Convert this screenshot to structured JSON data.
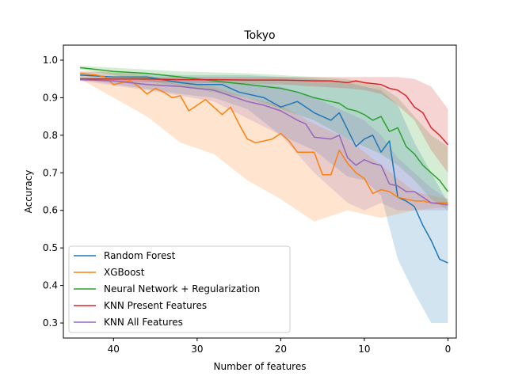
{
  "chart_data": {
    "type": "line",
    "title": "Tokyo",
    "xlabel": "Number of features",
    "ylabel": "Accuracy",
    "xlim": [
      46,
      -1
    ],
    "ylim": [
      0.26,
      1.04
    ],
    "x_inverted": true,
    "grid": false,
    "legend_position": "lower-left",
    "x_ticks": [
      40,
      30,
      20,
      10,
      0
    ],
    "y_ticks": [
      0.3,
      0.4,
      0.5,
      0.6,
      0.7,
      0.8,
      0.9,
      1.0
    ],
    "x_tick_labels": [
      "40",
      "30",
      "20",
      "10",
      "0"
    ],
    "y_tick_labels": [
      "0.3",
      "0.4",
      "0.5",
      "0.6",
      "0.7",
      "0.8",
      "0.9",
      "1.0"
    ],
    "band_style": "shaded min/max range per series",
    "series": [
      {
        "name": "Random Forest",
        "color": "#1f77b4",
        "points": [
          [
            44,
            0.96
          ],
          [
            40,
            0.955
          ],
          [
            36,
            0.955
          ],
          [
            32,
            0.94
          ],
          [
            30,
            0.935
          ],
          [
            27,
            0.935
          ],
          [
            25,
            0.915
          ],
          [
            22,
            0.9
          ],
          [
            20,
            0.875
          ],
          [
            18,
            0.89
          ],
          [
            16,
            0.86
          ],
          [
            14,
            0.84
          ],
          [
            13,
            0.86
          ],
          [
            11,
            0.77
          ],
          [
            10,
            0.79
          ],
          [
            9,
            0.8
          ],
          [
            8,
            0.755
          ],
          [
            7,
            0.785
          ],
          [
            6,
            0.635
          ],
          [
            5,
            0.625
          ],
          [
            4,
            0.61
          ],
          [
            3,
            0.56
          ],
          [
            2,
            0.52
          ],
          [
            1,
            0.47
          ],
          [
            0,
            0.46
          ]
        ],
        "band_upper": [
          [
            44,
            0.97
          ],
          [
            32,
            0.96
          ],
          [
            28,
            0.96
          ],
          [
            24,
            0.96
          ],
          [
            20,
            0.955
          ],
          [
            16,
            0.95
          ],
          [
            12,
            0.94
          ],
          [
            10,
            0.93
          ],
          [
            8,
            0.92
          ],
          [
            6,
            0.88
          ],
          [
            4,
            0.78
          ],
          [
            2,
            0.7
          ],
          [
            0,
            0.62
          ]
        ],
        "band_lower": [
          [
            44,
            0.95
          ],
          [
            32,
            0.91
          ],
          [
            28,
            0.9
          ],
          [
            24,
            0.87
          ],
          [
            20,
            0.8
          ],
          [
            16,
            0.76
          ],
          [
            12,
            0.69
          ],
          [
            10,
            0.68
          ],
          [
            8,
            0.64
          ],
          [
            6,
            0.47
          ],
          [
            4,
            0.38
          ],
          [
            2,
            0.3
          ],
          [
            0,
            0.3
          ]
        ]
      },
      {
        "name": "XGBoost",
        "color": "#ff7f0e",
        "points": [
          [
            44,
            0.965
          ],
          [
            42,
            0.96
          ],
          [
            41,
            0.955
          ],
          [
            40,
            0.935
          ],
          [
            38,
            0.945
          ],
          [
            37,
            0.93
          ],
          [
            36,
            0.91
          ],
          [
            35,
            0.925
          ],
          [
            34,
            0.915
          ],
          [
            33,
            0.9
          ],
          [
            32,
            0.905
          ],
          [
            31,
            0.865
          ],
          [
            29,
            0.895
          ],
          [
            28,
            0.875
          ],
          [
            27,
            0.855
          ],
          [
            26,
            0.875
          ],
          [
            25,
            0.83
          ],
          [
            24,
            0.79
          ],
          [
            23,
            0.78
          ],
          [
            21,
            0.79
          ],
          [
            20,
            0.805
          ],
          [
            19,
            0.785
          ],
          [
            18,
            0.755
          ],
          [
            16,
            0.755
          ],
          [
            15,
            0.695
          ],
          [
            14,
            0.695
          ],
          [
            13,
            0.76
          ],
          [
            12,
            0.725
          ],
          [
            11,
            0.7
          ],
          [
            10,
            0.685
          ],
          [
            9,
            0.645
          ],
          [
            8,
            0.655
          ],
          [
            7,
            0.65
          ],
          [
            6,
            0.635
          ],
          [
            5,
            0.63
          ],
          [
            4,
            0.625
          ],
          [
            3,
            0.625
          ],
          [
            2,
            0.62
          ],
          [
            0,
            0.62
          ]
        ],
        "band_upper": [
          [
            44,
            0.97
          ],
          [
            40,
            0.97
          ],
          [
            36,
            0.96
          ],
          [
            32,
            0.94
          ],
          [
            28,
            0.93
          ],
          [
            24,
            0.9
          ],
          [
            20,
            0.88
          ],
          [
            16,
            0.83
          ],
          [
            12,
            0.79
          ],
          [
            8,
            0.72
          ],
          [
            4,
            0.65
          ],
          [
            0,
            0.63
          ]
        ],
        "band_lower": [
          [
            44,
            0.95
          ],
          [
            40,
            0.9
          ],
          [
            36,
            0.85
          ],
          [
            32,
            0.78
          ],
          [
            28,
            0.75
          ],
          [
            24,
            0.68
          ],
          [
            20,
            0.63
          ],
          [
            16,
            0.57
          ],
          [
            12,
            0.6
          ],
          [
            8,
            0.58
          ],
          [
            4,
            0.6
          ],
          [
            0,
            0.61
          ]
        ]
      },
      {
        "name": "Neural Network + Regularization",
        "color": "#2ca02c",
        "points": [
          [
            44,
            0.98
          ],
          [
            42,
            0.975
          ],
          [
            40,
            0.97
          ],
          [
            36,
            0.965
          ],
          [
            32,
            0.955
          ],
          [
            28,
            0.945
          ],
          [
            24,
            0.935
          ],
          [
            20,
            0.925
          ],
          [
            18,
            0.915
          ],
          [
            16,
            0.9
          ],
          [
            14,
            0.89
          ],
          [
            13,
            0.885
          ],
          [
            12,
            0.87
          ],
          [
            11,
            0.865
          ],
          [
            10,
            0.855
          ],
          [
            9,
            0.84
          ],
          [
            8,
            0.85
          ],
          [
            7,
            0.81
          ],
          [
            6,
            0.82
          ],
          [
            5,
            0.77
          ],
          [
            4,
            0.75
          ],
          [
            3,
            0.72
          ],
          [
            2,
            0.7
          ],
          [
            1,
            0.68
          ],
          [
            0,
            0.65
          ]
        ],
        "band_upper": [
          [
            44,
            0.985
          ],
          [
            40,
            0.98
          ],
          [
            32,
            0.97
          ],
          [
            24,
            0.965
          ],
          [
            20,
            0.96
          ],
          [
            16,
            0.955
          ],
          [
            12,
            0.95
          ],
          [
            10,
            0.94
          ],
          [
            8,
            0.93
          ],
          [
            6,
            0.9
          ],
          [
            4,
            0.85
          ],
          [
            2,
            0.8
          ],
          [
            0,
            0.77
          ]
        ],
        "band_lower": [
          [
            44,
            0.975
          ],
          [
            40,
            0.96
          ],
          [
            32,
            0.93
          ],
          [
            24,
            0.9
          ],
          [
            20,
            0.87
          ],
          [
            16,
            0.84
          ],
          [
            12,
            0.79
          ],
          [
            10,
            0.77
          ],
          [
            8,
            0.75
          ],
          [
            6,
            0.72
          ],
          [
            4,
            0.68
          ],
          [
            2,
            0.63
          ],
          [
            0,
            0.6
          ]
        ]
      },
      {
        "name": "KNN Present Features",
        "color": "#d62728",
        "points": [
          [
            44,
            0.95
          ],
          [
            40,
            0.95
          ],
          [
            36,
            0.95
          ],
          [
            32,
            0.948
          ],
          [
            28,
            0.948
          ],
          [
            24,
            0.947
          ],
          [
            20,
            0.947
          ],
          [
            16,
            0.945
          ],
          [
            14,
            0.945
          ],
          [
            12,
            0.94
          ],
          [
            11,
            0.945
          ],
          [
            10,
            0.94
          ],
          [
            8,
            0.935
          ],
          [
            7,
            0.925
          ],
          [
            6,
            0.92
          ],
          [
            5,
            0.905
          ],
          [
            4,
            0.875
          ],
          [
            3,
            0.86
          ],
          [
            2,
            0.82
          ],
          [
            1,
            0.8
          ],
          [
            0,
            0.775
          ]
        ],
        "band_upper": [
          [
            44,
            0.955
          ],
          [
            32,
            0.955
          ],
          [
            20,
            0.955
          ],
          [
            12,
            0.955
          ],
          [
            10,
            0.955
          ],
          [
            8,
            0.955
          ],
          [
            6,
            0.955
          ],
          [
            4,
            0.95
          ],
          [
            2,
            0.93
          ],
          [
            0,
            0.87
          ]
        ],
        "band_lower": [
          [
            44,
            0.945
          ],
          [
            32,
            0.94
          ],
          [
            20,
            0.935
          ],
          [
            12,
            0.925
          ],
          [
            10,
            0.92
          ],
          [
            8,
            0.91
          ],
          [
            6,
            0.88
          ],
          [
            4,
            0.84
          ],
          [
            2,
            0.76
          ],
          [
            0,
            0.7
          ]
        ]
      },
      {
        "name": "KNN All Features",
        "color": "#9467bd",
        "points": [
          [
            44,
            0.948
          ],
          [
            40,
            0.945
          ],
          [
            36,
            0.935
          ],
          [
            32,
            0.93
          ],
          [
            30,
            0.925
          ],
          [
            28,
            0.92
          ],
          [
            26,
            0.905
          ],
          [
            24,
            0.89
          ],
          [
            22,
            0.88
          ],
          [
            20,
            0.865
          ],
          [
            18,
            0.84
          ],
          [
            17,
            0.83
          ],
          [
            16,
            0.795
          ],
          [
            14,
            0.79
          ],
          [
            13,
            0.8
          ],
          [
            12,
            0.74
          ],
          [
            11,
            0.72
          ],
          [
            10,
            0.735
          ],
          [
            9,
            0.725
          ],
          [
            8,
            0.72
          ],
          [
            7,
            0.67
          ],
          [
            6,
            0.665
          ],
          [
            5,
            0.65
          ],
          [
            4,
            0.65
          ],
          [
            3,
            0.635
          ],
          [
            2,
            0.62
          ],
          [
            0,
            0.615
          ]
        ],
        "band_upper": [
          [
            44,
            0.95
          ],
          [
            36,
            0.95
          ],
          [
            28,
            0.945
          ],
          [
            20,
            0.93
          ],
          [
            16,
            0.9
          ],
          [
            12,
            0.86
          ],
          [
            10,
            0.84
          ],
          [
            8,
            0.8
          ],
          [
            6,
            0.74
          ],
          [
            4,
            0.7
          ],
          [
            2,
            0.66
          ],
          [
            0,
            0.63
          ]
        ],
        "band_lower": [
          [
            44,
            0.945
          ],
          [
            36,
            0.92
          ],
          [
            28,
            0.89
          ],
          [
            20,
            0.8
          ],
          [
            16,
            0.7
          ],
          [
            12,
            0.62
          ],
          [
            10,
            0.6
          ],
          [
            8,
            0.62
          ],
          [
            6,
            0.6
          ],
          [
            4,
            0.6
          ],
          [
            2,
            0.6
          ],
          [
            0,
            0.6
          ]
        ]
      }
    ]
  }
}
